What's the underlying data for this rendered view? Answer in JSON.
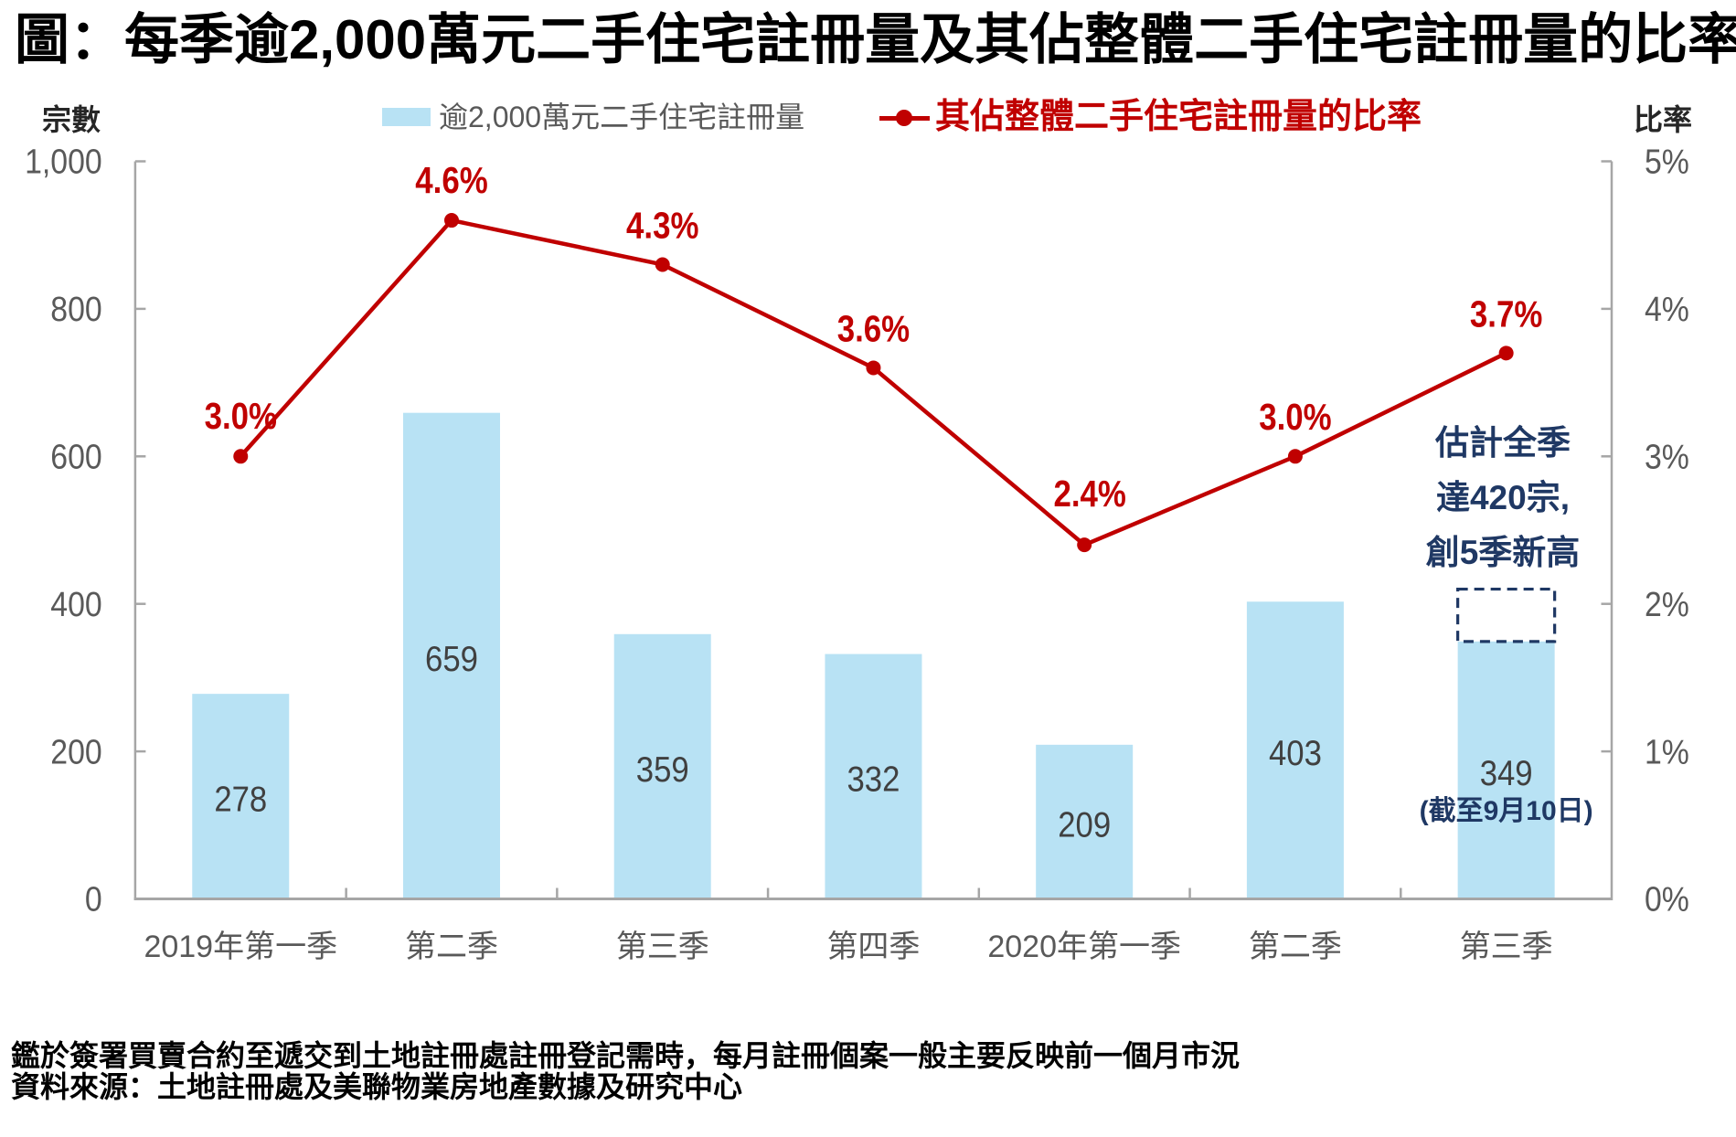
{
  "title": "圖：每季逾2,000萬元二手住宅註冊量及其佔整體二手住宅註冊量的比率",
  "axes": {
    "left_title": "宗數",
    "right_title": "比率",
    "left_ticks": [
      "1,000",
      "800",
      "600",
      "400",
      "200",
      "0"
    ],
    "right_ticks": [
      "5%",
      "4%",
      "3%",
      "2%",
      "1%",
      "0%"
    ]
  },
  "legend": [
    {
      "label": "逾2,000萬元二手住宅註冊量",
      "marker": "bar-swatch"
    },
    {
      "label": "其佔整體二手住宅註冊量的比率",
      "marker": "line-dot"
    }
  ],
  "chart_data": {
    "type": "bar+line",
    "categories": [
      "2019年第一季",
      "第二季",
      "第三季",
      "第四季",
      "2020年第一季",
      "第二季",
      "第三季"
    ],
    "series": [
      {
        "name": "逾2,000萬元二手住宅註冊量",
        "type": "bar",
        "axis": "left",
        "values": [
          278,
          659,
          359,
          332,
          209,
          403,
          349
        ]
      },
      {
        "name": "其佔整體二手住宅註冊量的比率",
        "type": "line",
        "axis": "right",
        "values": [
          3.0,
          4.6,
          4.3,
          3.6,
          2.4,
          3.0,
          3.7
        ],
        "labels": [
          "3.0%",
          "4.6%",
          "4.3%",
          "3.6%",
          "2.4%",
          "3.0%",
          "3.7%"
        ]
      }
    ],
    "left_axis": {
      "min": 0,
      "max": 1000,
      "step": 200
    },
    "right_axis": {
      "min": 0,
      "max": 5,
      "step": 1,
      "unit": "%"
    },
    "last_bar_note": "(截至9月10日)",
    "estimate": {
      "value": 420,
      "lines": [
        "估計全季",
        "達420宗,",
        "創5季新高"
      ]
    },
    "legend_position": "top",
    "grid": false
  },
  "footnotes": [
    "鑑於簽署買賣合約至遞交到土地註冊處註冊登記需時，每月註冊個案一般主要反映前一個月市況",
    "資料來源：土地註冊處及美聯物業房地產數據及研究中心"
  ],
  "colors": {
    "bar": "#B8E2F4",
    "line": "#C00000",
    "annotation": "#1F3864",
    "axis_line": "#A6A6A6",
    "axis_label": "#595959",
    "bar_label": "#404040",
    "title": "#000000"
  }
}
